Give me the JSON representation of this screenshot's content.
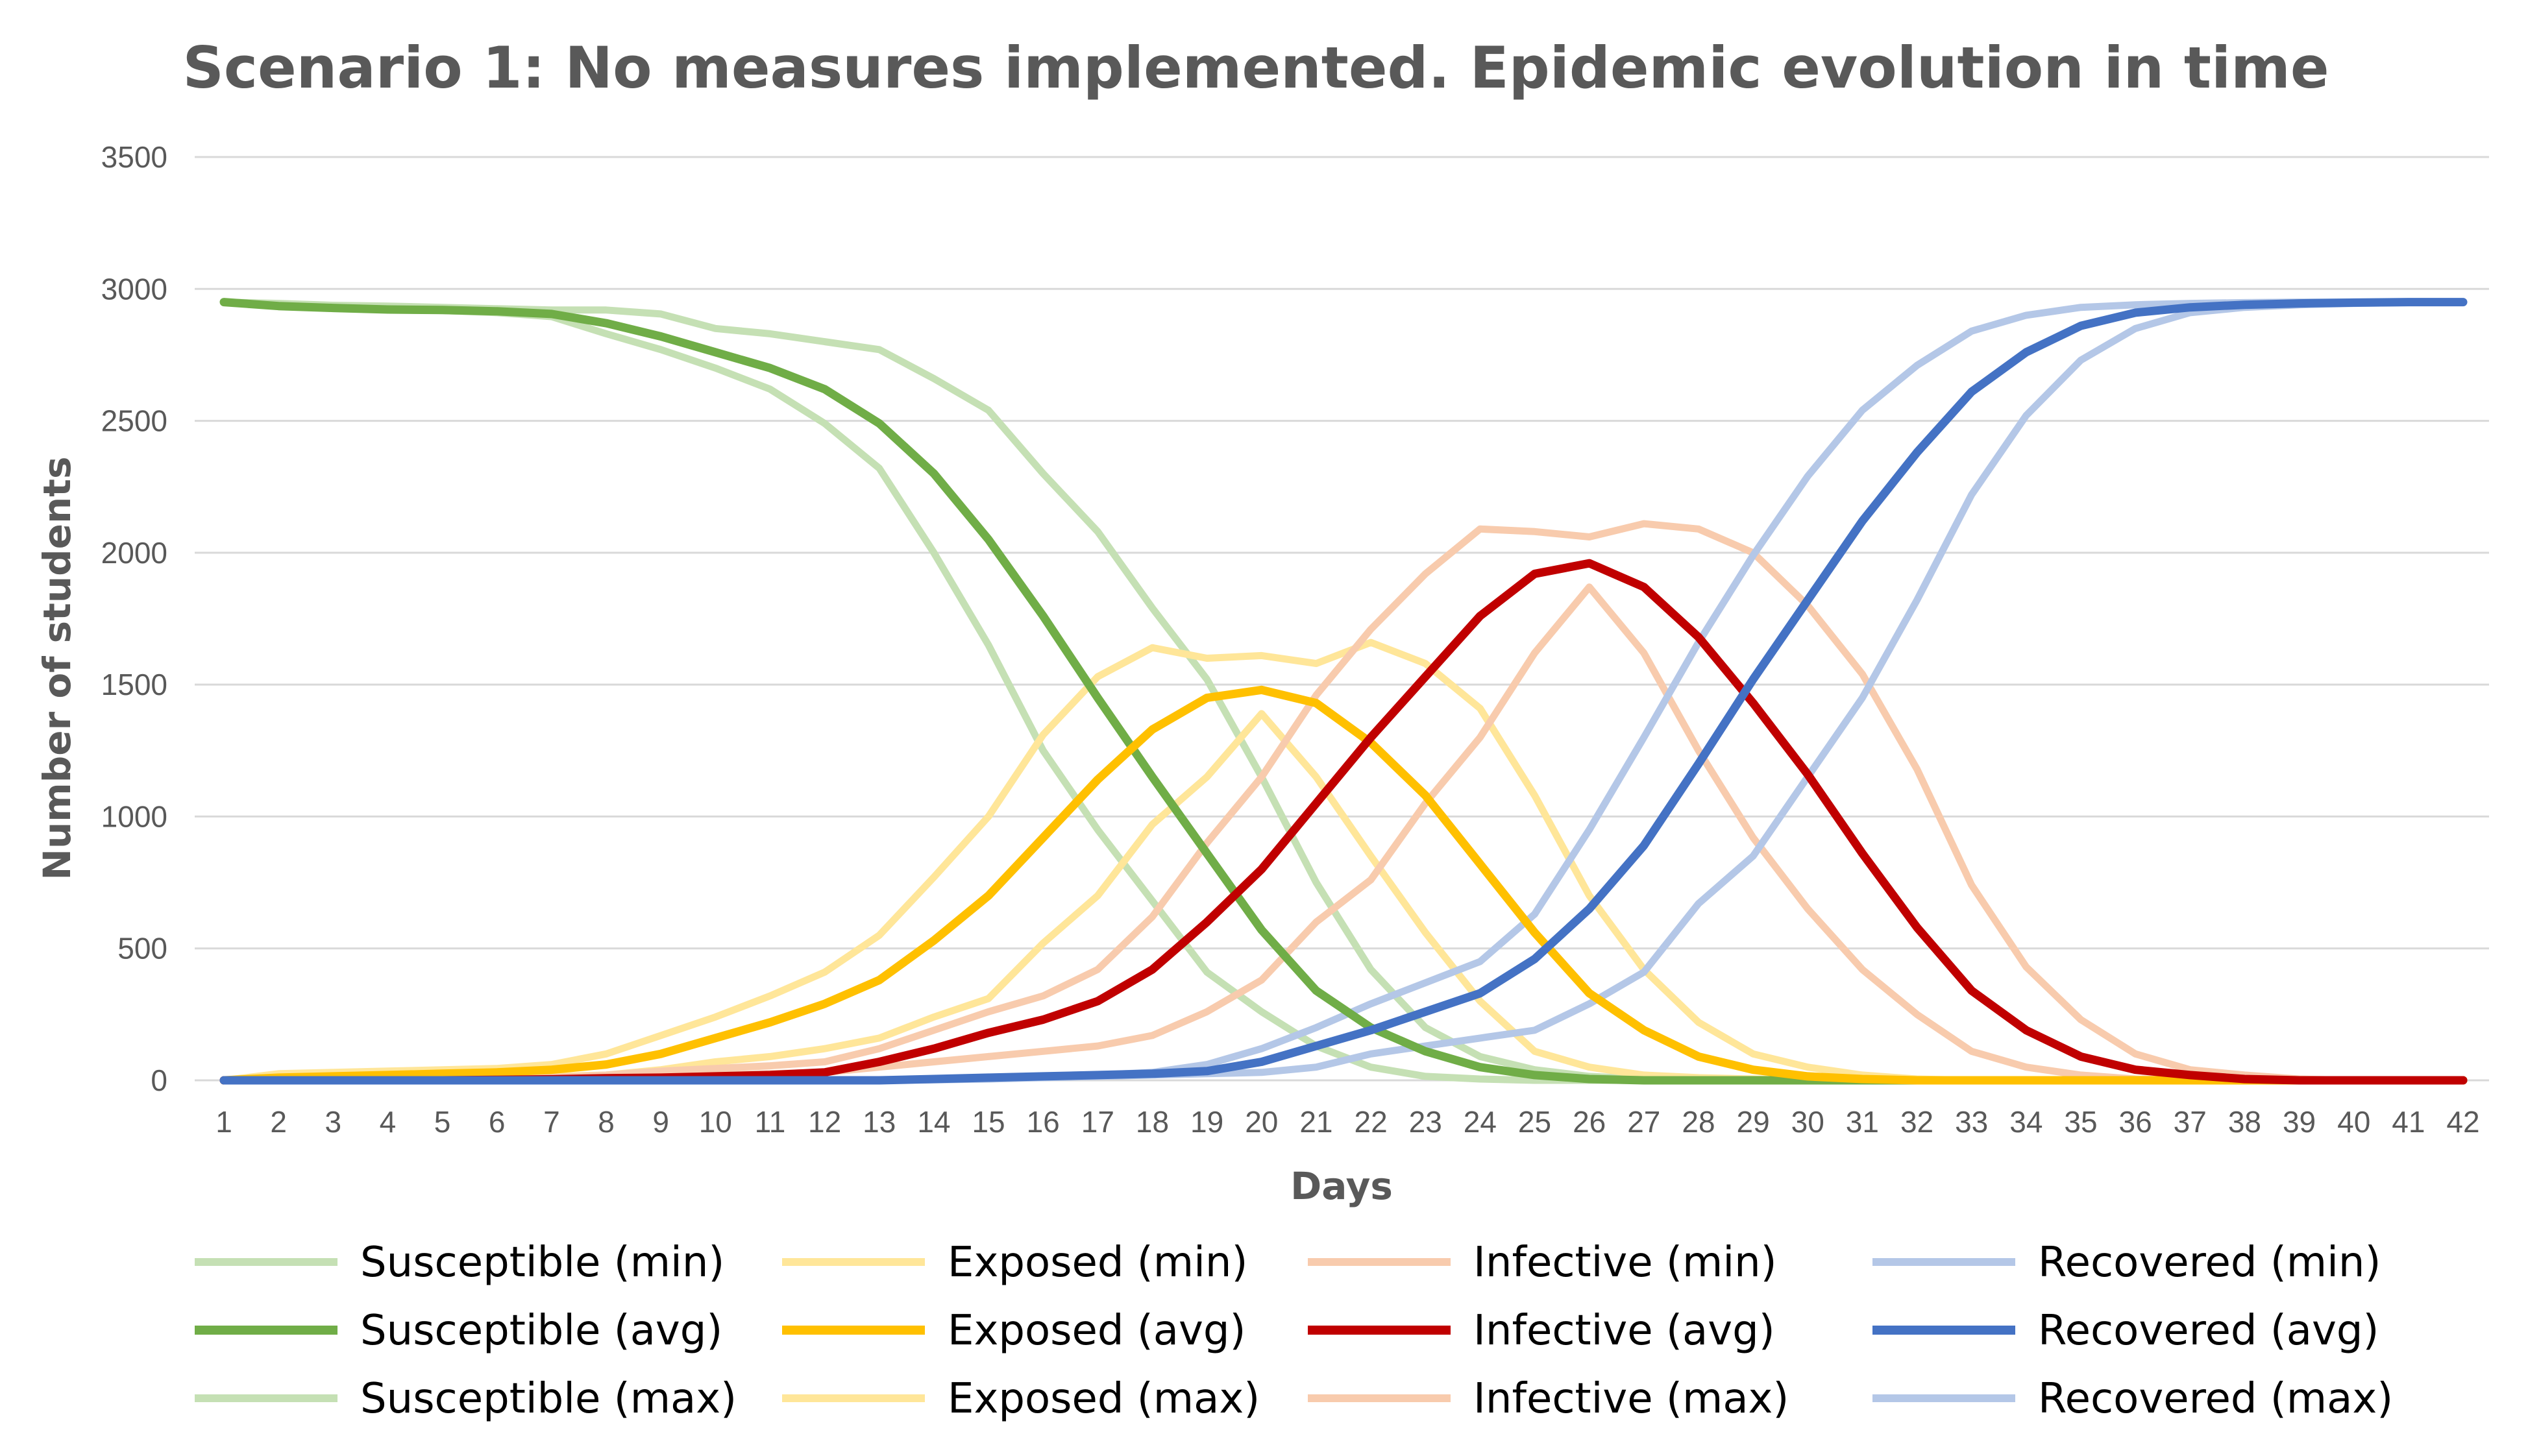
{
  "chart_data": {
    "type": "line",
    "title": "Scenario 1: No measures implemented. Epidemic evolution in time",
    "xlabel": "Days",
    "ylabel": "Number of students",
    "ylim": [
      0,
      3500
    ],
    "yticks": [
      "0",
      "500",
      "1000",
      "1500",
      "2000",
      "2500",
      "3000",
      "3500"
    ],
    "ytick_values": [
      0,
      500,
      1000,
      1500,
      2000,
      2500,
      3000,
      3500
    ],
    "x": [
      1,
      2,
      3,
      4,
      5,
      6,
      7,
      8,
      9,
      10,
      11,
      12,
      13,
      14,
      15,
      16,
      17,
      18,
      19,
      20,
      21,
      22,
      23,
      24,
      25,
      26,
      27,
      28,
      29,
      30,
      31,
      32,
      33,
      34,
      35,
      36,
      37,
      38,
      39,
      40,
      41,
      42
    ],
    "grid": true,
    "legend_position": "bottom",
    "series": [
      {
        "name": "Susceptible (min)",
        "color": "#c5e0b4",
        "weight": "light",
        "values": [
          2950,
          2935,
          2928,
          2922,
          2918,
          2910,
          2895,
          2830,
          2770,
          2700,
          2620,
          2490,
          2320,
          2000,
          1650,
          1250,
          950,
          680,
          410,
          260,
          130,
          50,
          15,
          5,
          0,
          0,
          0,
          0,
          0,
          0,
          0,
          0,
          0,
          0,
          0,
          0,
          0,
          0,
          0,
          0,
          0,
          0
        ]
      },
      {
        "name": "Susceptible (avg)",
        "color": "#70ad47",
        "weight": "bold",
        "values": [
          2950,
          2935,
          2928,
          2922,
          2920,
          2915,
          2905,
          2870,
          2820,
          2760,
          2700,
          2620,
          2490,
          2300,
          2050,
          1760,
          1450,
          1150,
          860,
          570,
          340,
          200,
          110,
          50,
          20,
          5,
          0,
          0,
          0,
          0,
          0,
          0,
          0,
          0,
          0,
          0,
          0,
          0,
          0,
          0,
          0,
          0
        ]
      },
      {
        "name": "Susceptible (max)",
        "color": "#c5e0b4",
        "weight": "light",
        "values": [
          2950,
          2945,
          2938,
          2935,
          2930,
          2925,
          2920,
          2920,
          2905,
          2850,
          2830,
          2800,
          2770,
          2660,
          2540,
          2300,
          2080,
          1790,
          1520,
          1150,
          750,
          420,
          200,
          90,
          40,
          15,
          5,
          0,
          0,
          0,
          0,
          0,
          0,
          0,
          0,
          0,
          0,
          0,
          0,
          0,
          0,
          0
        ]
      },
      {
        "name": "Exposed (min)",
        "color": "#ffe699",
        "weight": "light",
        "values": [
          0,
          2,
          3,
          5,
          7,
          10,
          15,
          20,
          40,
          70,
          90,
          120,
          160,
          240,
          310,
          520,
          700,
          970,
          1150,
          1390,
          1150,
          850,
          560,
          300,
          110,
          50,
          20,
          10,
          5,
          2,
          0,
          0,
          0,
          0,
          0,
          0,
          0,
          0,
          0,
          0,
          0,
          0
        ]
      },
      {
        "name": "Exposed (avg)",
        "color": "#ffc000",
        "weight": "bold",
        "values": [
          0,
          10,
          15,
          20,
          25,
          30,
          40,
          60,
          100,
          160,
          220,
          290,
          380,
          530,
          700,
          920,
          1140,
          1330,
          1450,
          1480,
          1430,
          1280,
          1080,
          820,
          560,
          330,
          190,
          90,
          40,
          15,
          5,
          0,
          0,
          0,
          0,
          0,
          0,
          0,
          0,
          0,
          0,
          0
        ]
      },
      {
        "name": "Exposed (max)",
        "color": "#ffe699",
        "weight": "light",
        "values": [
          0,
          25,
          30,
          35,
          40,
          45,
          60,
          100,
          170,
          240,
          320,
          410,
          550,
          770,
          1000,
          1310,
          1530,
          1640,
          1600,
          1610,
          1580,
          1660,
          1580,
          1410,
          1080,
          700,
          420,
          220,
          100,
          50,
          20,
          5,
          0,
          0,
          0,
          0,
          0,
          0,
          0,
          0,
          0,
          0
        ]
      },
      {
        "name": "Infective (min)",
        "color": "#f8cbad",
        "weight": "light",
        "values": [
          0,
          0,
          0,
          0,
          2,
          3,
          5,
          10,
          15,
          20,
          25,
          30,
          50,
          70,
          90,
          110,
          130,
          170,
          260,
          380,
          600,
          760,
          1050,
          1300,
          1620,
          1870,
          1620,
          1250,
          920,
          650,
          420,
          250,
          110,
          50,
          20,
          5,
          2,
          0,
          0,
          0,
          0,
          0
        ]
      },
      {
        "name": "Infective (avg)",
        "color": "#c00000",
        "weight": "bold",
        "values": [
          0,
          0,
          0,
          0,
          0,
          2,
          4,
          8,
          10,
          15,
          20,
          30,
          70,
          120,
          180,
          230,
          300,
          420,
          600,
          800,
          1050,
          1300,
          1530,
          1760,
          1920,
          1960,
          1870,
          1680,
          1430,
          1160,
          860,
          580,
          340,
          190,
          90,
          40,
          20,
          5,
          0,
          0,
          0,
          0
        ]
      },
      {
        "name": "Infective (max)",
        "color": "#f8cbad",
        "weight": "light",
        "values": [
          0,
          0,
          0,
          0,
          2,
          5,
          10,
          20,
          35,
          45,
          55,
          70,
          120,
          190,
          260,
          320,
          420,
          620,
          900,
          1150,
          1460,
          1710,
          1920,
          2090,
          2080,
          2060,
          2110,
          2090,
          2000,
          1800,
          1540,
          1180,
          740,
          430,
          230,
          100,
          40,
          20,
          5,
          0,
          0,
          0
        ]
      },
      {
        "name": "Recovered (min)",
        "color": "#b4c7e7",
        "weight": "light",
        "values": [
          0,
          0,
          0,
          0,
          0,
          0,
          0,
          0,
          0,
          0,
          0,
          0,
          0,
          2,
          5,
          10,
          15,
          20,
          25,
          30,
          50,
          100,
          130,
          160,
          190,
          290,
          410,
          670,
          850,
          1150,
          1450,
          1820,
          2220,
          2520,
          2730,
          2850,
          2910,
          2930,
          2940,
          2945,
          2948,
          2950
        ]
      },
      {
        "name": "Recovered (avg)",
        "color": "#4472c4",
        "weight": "bold",
        "values": [
          0,
          0,
          0,
          0,
          0,
          0,
          0,
          0,
          0,
          0,
          0,
          0,
          0,
          5,
          10,
          15,
          20,
          25,
          35,
          70,
          130,
          190,
          260,
          330,
          460,
          650,
          890,
          1200,
          1520,
          1820,
          2120,
          2380,
          2610,
          2760,
          2860,
          2910,
          2930,
          2940,
          2945,
          2948,
          2950,
          2950
        ]
      },
      {
        "name": "Recovered (max)",
        "color": "#b4c7e7",
        "weight": "light",
        "values": [
          0,
          0,
          0,
          0,
          0,
          0,
          0,
          0,
          0,
          0,
          0,
          0,
          0,
          5,
          10,
          15,
          20,
          30,
          60,
          120,
          200,
          290,
          370,
          450,
          630,
          950,
          1300,
          1660,
          1990,
          2290,
          2540,
          2710,
          2840,
          2900,
          2930,
          2940,
          2945,
          2948,
          2950,
          2950,
          2950,
          2950
        ]
      }
    ],
    "legend": {
      "columns": [
        [
          "Susceptible (min)",
          "Susceptible (avg)",
          "Susceptible (max)"
        ],
        [
          "Exposed (min)",
          "Exposed (avg)",
          "Exposed (max)"
        ],
        [
          "Infective (min)",
          "Infective (avg)",
          "Infective (max)"
        ],
        [
          "Recovered (min)",
          "Recovered (avg)",
          "Recovered (max)"
        ]
      ]
    },
    "colors": {
      "gridline": "#d9d9d9",
      "text": "#595959"
    }
  }
}
